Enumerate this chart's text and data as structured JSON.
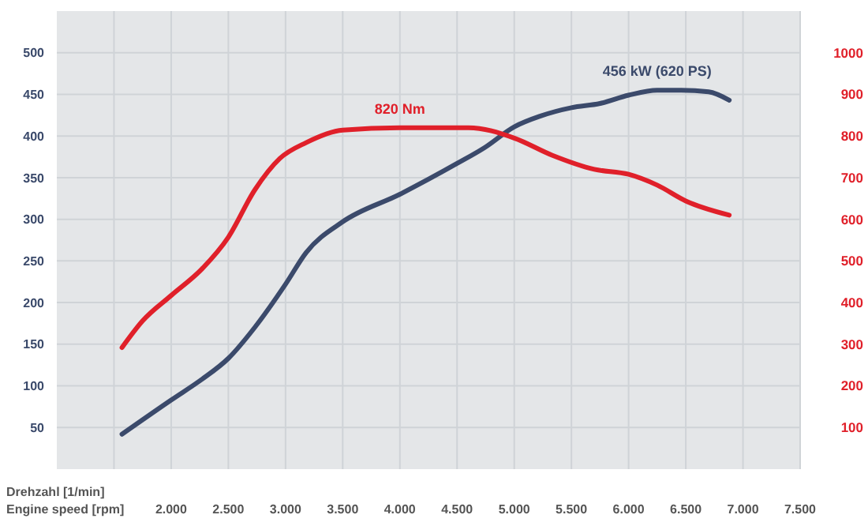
{
  "chart_data": {
    "type": "line",
    "xlabel": "Drehzahl [1/min]\nEngine speed [rpm]",
    "xlim": [
      1000,
      7500
    ],
    "xticks": [
      {
        "value": 1500,
        "label": null
      },
      {
        "value": 2000,
        "label": "2.000"
      },
      {
        "value": 2500,
        "label": "2.500"
      },
      {
        "value": 3000,
        "label": "3.000"
      },
      {
        "value": 3500,
        "label": "3.500"
      },
      {
        "value": 4000,
        "label": "4.000"
      },
      {
        "value": 4500,
        "label": "4.500"
      },
      {
        "value": 5000,
        "label": "5.000"
      },
      {
        "value": 5500,
        "label": "5.500"
      },
      {
        "value": 6000,
        "label": "6.000"
      },
      {
        "value": 6500,
        "label": "6.500"
      },
      {
        "value": 7000,
        "label": "7.000"
      },
      {
        "value": 7500,
        "label": "7.500"
      }
    ],
    "ylim": [
      0,
      550
    ],
    "yticks": [
      50,
      100,
      150,
      200,
      250,
      300,
      350,
      400,
      450,
      500
    ],
    "y2lim": [
      0,
      1100
    ],
    "y2ticks": [
      100,
      200,
      300,
      400,
      500,
      600,
      700,
      800,
      900,
      1000
    ],
    "grid": true,
    "marker": "none",
    "line_style": "solid",
    "series": [
      {
        "name": "456 kW (620 PS)",
        "color": "#3b4a6b",
        "x": [
          1570,
          2000,
          2270,
          2500,
          2730,
          3000,
          3180,
          3500,
          4000,
          4500,
          4740,
          5000,
          5230,
          5500,
          5750,
          6000,
          6250,
          6460,
          6700,
          6880
        ],
        "values": [
          42,
          83,
          108,
          133,
          170,
          222,
          260,
          297,
          330,
          367,
          386,
          411,
          424,
          434,
          439,
          449,
          455,
          455,
          453,
          443
        ]
      },
      {
        "name": "820 Nm",
        "color": "#e0202a",
        "axis": "y2",
        "x": [
          1570,
          1750,
          2000,
          2270,
          2500,
          2730,
          2950,
          3180,
          3500,
          4000,
          4600,
          5000,
          5330,
          5700,
          6000,
          6250,
          6500,
          6880
        ],
        "values": [
          292,
          356,
          417,
          481,
          557,
          670,
          746,
          784,
          814,
          820,
          820,
          795,
          754,
          720,
          708,
          682,
          644,
          610
        ]
      }
    ]
  }
}
